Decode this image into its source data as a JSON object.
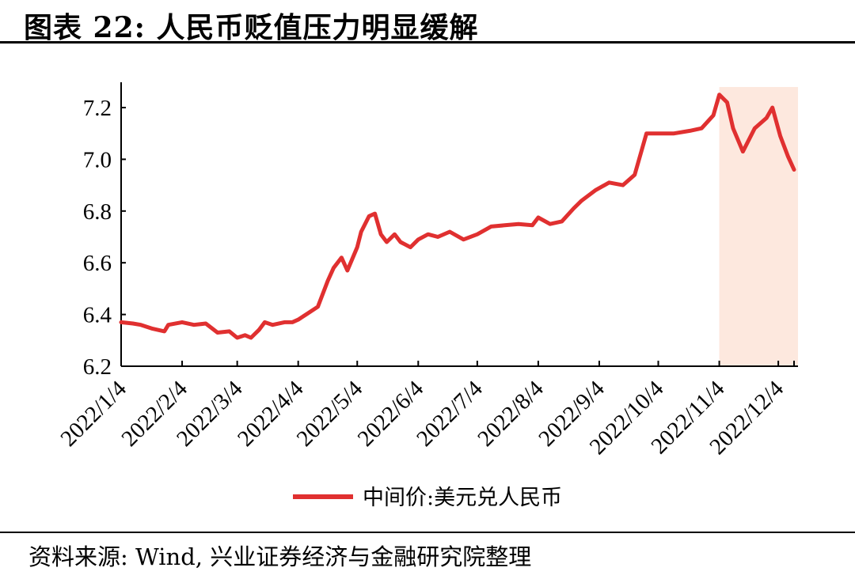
{
  "header": {
    "title": "图表 22: 人民币贬值压力明显缓解"
  },
  "footer": {
    "source": "资料来源: Wind, 兴业证券经济与金融研究院整理"
  },
  "colors": {
    "series": "#e03030",
    "highlight": "#fde8de"
  },
  "chart_data": {
    "type": "line",
    "title": "",
    "xlabel": "",
    "ylabel": "",
    "ylim": [
      6.2,
      7.3
    ],
    "yticks": [
      "6.2",
      "6.4",
      "6.6",
      "6.8",
      "7.0",
      "7.2"
    ],
    "xticks": [
      "2022/1/4",
      "2022/2/4",
      "2022/3/4",
      "2022/4/4",
      "2022/5/4",
      "2022/6/4",
      "2022/7/4",
      "2022/8/4",
      "2022/9/4",
      "2022/10/4",
      "2022/11/4",
      "2022/12/4"
    ],
    "grid": false,
    "legend": "bottom",
    "highlight_range": [
      "2022/11/4",
      "2022/12/12"
    ],
    "series": [
      {
        "name": "中间价:美元兑人民币",
        "x": [
          "2022/1/4",
          "2022/1/10",
          "2022/1/14",
          "2022/1/20",
          "2022/1/26",
          "2022/1/28",
          "2022/2/4",
          "2022/2/10",
          "2022/2/16",
          "2022/2/22",
          "2022/2/28",
          "2022/3/4",
          "2022/3/8",
          "2022/3/11",
          "2022/3/15",
          "2022/3/18",
          "2022/3/22",
          "2022/3/28",
          "2022/4/1",
          "2022/4/4",
          "2022/4/8",
          "2022/4/14",
          "2022/4/19",
          "2022/4/22",
          "2022/4/26",
          "2022/4/29",
          "2022/5/4",
          "2022/5/6",
          "2022/5/10",
          "2022/5/13",
          "2022/5/16",
          "2022/5/19",
          "2022/5/23",
          "2022/5/26",
          "2022/5/31",
          "2022/6/4",
          "2022/6/9",
          "2022/6/14",
          "2022/6/20",
          "2022/6/27",
          "2022/7/4",
          "2022/7/11",
          "2022/7/18",
          "2022/7/25",
          "2022/8/1",
          "2022/8/4",
          "2022/8/10",
          "2022/8/16",
          "2022/8/22",
          "2022/8/26",
          "2022/9/2",
          "2022/9/9",
          "2022/9/16",
          "2022/9/22",
          "2022/9/28",
          "2022/10/4",
          "2022/10/12",
          "2022/10/20",
          "2022/10/26",
          "2022/11/1",
          "2022/11/4",
          "2022/11/8",
          "2022/11/11",
          "2022/11/16",
          "2022/11/22",
          "2022/11/28",
          "2022/12/1",
          "2022/12/5",
          "2022/12/9",
          "2022/12/12"
        ],
        "values": [
          6.37,
          6.365,
          6.36,
          6.345,
          6.335,
          6.36,
          6.37,
          6.36,
          6.365,
          6.33,
          6.335,
          6.31,
          6.32,
          6.31,
          6.34,
          6.37,
          6.36,
          6.37,
          6.37,
          6.38,
          6.4,
          6.43,
          6.53,
          6.58,
          6.62,
          6.57,
          6.66,
          6.72,
          6.78,
          6.79,
          6.71,
          6.68,
          6.71,
          6.68,
          6.66,
          6.69,
          6.71,
          6.7,
          6.72,
          6.69,
          6.71,
          6.74,
          6.745,
          6.75,
          6.745,
          6.775,
          6.75,
          6.76,
          6.81,
          6.84,
          6.88,
          6.91,
          6.9,
          6.94,
          7.1,
          7.1,
          7.1,
          7.11,
          7.12,
          7.17,
          7.25,
          7.22,
          7.12,
          7.03,
          7.12,
          7.16,
          7.2,
          7.09,
          7.01,
          6.96
        ]
      }
    ]
  }
}
